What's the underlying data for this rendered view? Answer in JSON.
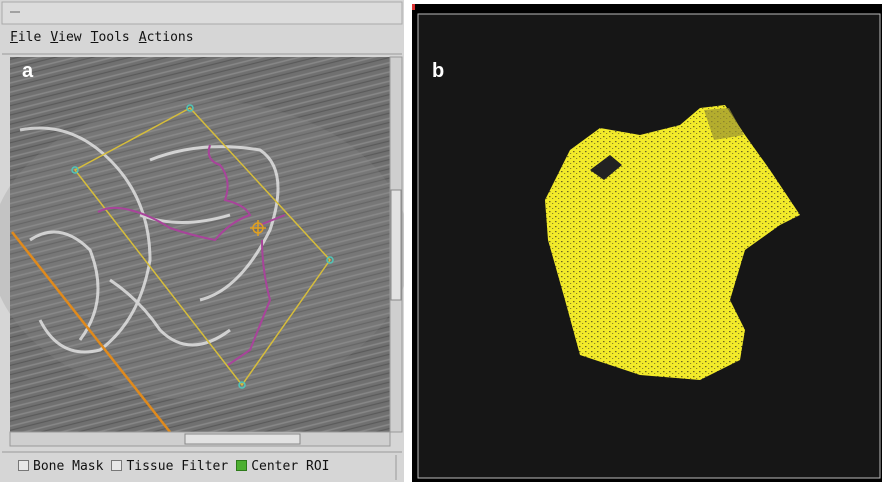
{
  "menu": [
    "File",
    "View",
    "Tools",
    "Actions"
  ],
  "panel_labels": [
    "a",
    "b"
  ],
  "checkboxes": [
    {
      "label": "Bone Mask",
      "checked": false
    },
    {
      "label": "Tissue Filter",
      "checked": false
    },
    {
      "label": "Center ROI",
      "checked": true
    }
  ]
}
